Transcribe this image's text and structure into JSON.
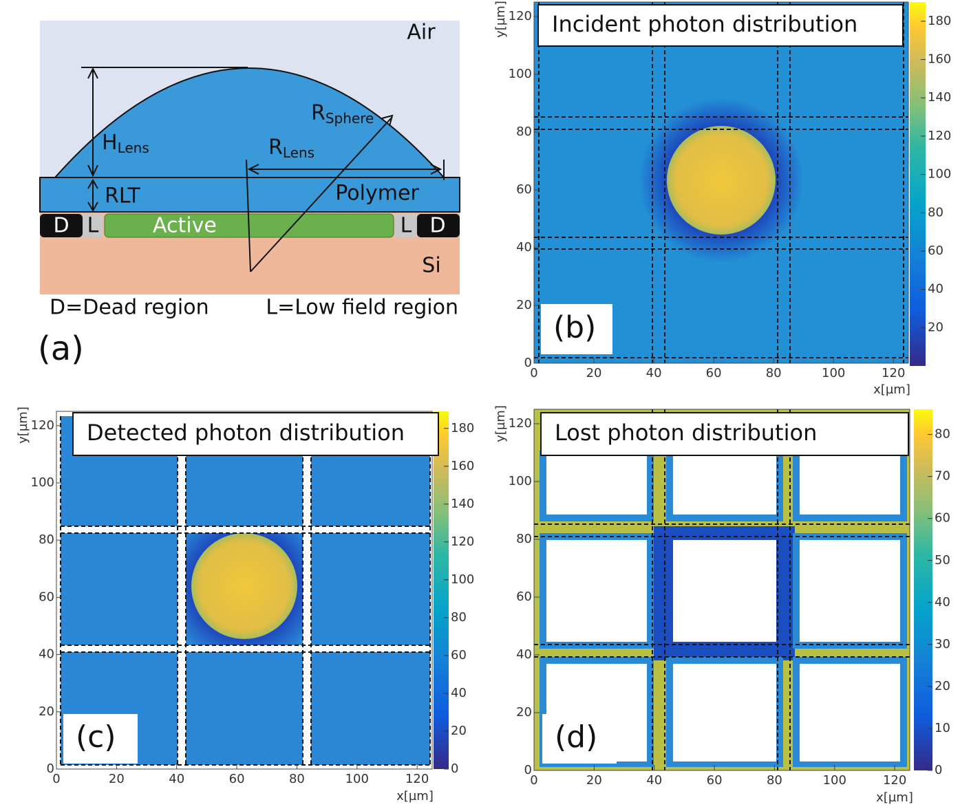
{
  "panel_a": {
    "air": "Air",
    "h_lens": {
      "text": "H",
      "sub": "Lens"
    },
    "r_sphere": {
      "text": "R",
      "sub": "Sphere"
    },
    "r_lens": {
      "text": "R",
      "sub": "Lens"
    },
    "rlt": "RLT",
    "polymer": "Polymer",
    "dead_left": "D",
    "low_left": "L",
    "active": "Active",
    "low_right": "L",
    "dead_right": "D",
    "si": "Si",
    "legend_dead": "D=Dead region",
    "legend_low": "L=Low field region",
    "label": "(a)"
  },
  "panels": [
    {
      "title": "Incident photon distribution",
      "label": "(b)",
      "x_label": "x[µm]",
      "y_label": "y[µm]",
      "xlim": [
        0,
        125
      ],
      "ylim": [
        0,
        125
      ],
      "xticks": [
        0,
        20,
        40,
        60,
        80,
        100,
        120
      ],
      "yticks": [
        0,
        20,
        40,
        60,
        80,
        100,
        120
      ],
      "colorbar": {
        "lim": [
          0,
          190
        ],
        "ticks": [
          20,
          40,
          60,
          80,
          100,
          120,
          140,
          160,
          180
        ]
      }
    },
    {
      "title": "Detected photon distribution",
      "label": "(c)",
      "x_label": "x[µm]",
      "y_label": "y[µm]",
      "xlim": [
        0,
        125
      ],
      "ylim": [
        0,
        125
      ],
      "xticks": [
        0,
        20,
        40,
        60,
        80,
        100,
        120
      ],
      "yticks": [
        0,
        20,
        40,
        60,
        80,
        100,
        120
      ],
      "colorbar": {
        "lim": [
          0,
          189
        ],
        "ticks": [
          0,
          20,
          40,
          60,
          80,
          100,
          120,
          140,
          160,
          180
        ]
      }
    },
    {
      "title": "Lost photon distribution",
      "label": "(d)",
      "x_label": "x[µm]",
      "y_label": "y[µm]",
      "xlim": [
        0,
        125
      ],
      "ylim": [
        0,
        125
      ],
      "xticks": [
        0,
        20,
        40,
        60,
        80,
        100,
        120
      ],
      "yticks": [
        0,
        20,
        40,
        60,
        80,
        100,
        120
      ],
      "colorbar": {
        "lim": [
          0,
          86
        ],
        "ticks": [
          0,
          10,
          20,
          30,
          40,
          50,
          60,
          70,
          80
        ]
      }
    }
  ]
}
